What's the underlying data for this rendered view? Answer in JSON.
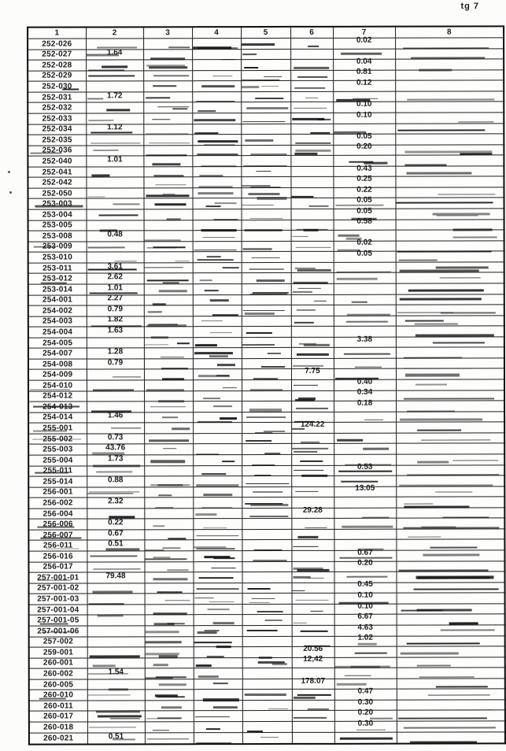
{
  "page_label": "tg 7",
  "table": {
    "headers": [
      "1",
      "2",
      "3",
      "4",
      "5",
      "6",
      "7",
      "8"
    ],
    "rows": [
      {
        "label": "252-026",
        "c2": "",
        "c6": "",
        "c7": "0.02"
      },
      {
        "label": "252-027",
        "c2": "1.64",
        "c6": "",
        "c7": ""
      },
      {
        "label": "252-028",
        "c2": "",
        "c6": "",
        "c7": "0.04"
      },
      {
        "label": "252-029",
        "c2": "",
        "c6": "",
        "c7": "0.81"
      },
      {
        "label": "252-030",
        "c2": "",
        "c6": "",
        "c7": "0.12"
      },
      {
        "label": "252-031",
        "c2": "1.72",
        "c6": "",
        "c7": ""
      },
      {
        "label": "252-032",
        "c2": "",
        "c6": "",
        "c7": "0.10"
      },
      {
        "label": "252-033",
        "c2": "",
        "c6": "",
        "c7": "0.10"
      },
      {
        "label": "252-034",
        "c2": "1.12",
        "c6": "",
        "c7": ""
      },
      {
        "label": "252-035",
        "c2": "",
        "c6": "",
        "c7": "0.05"
      },
      {
        "label": "252-036",
        "c2": "",
        "c6": "",
        "c7": "0.20"
      },
      {
        "label": "252-040",
        "c2": "1.01",
        "c6": "",
        "c7": ""
      },
      {
        "label": "252-041",
        "c2": "",
        "c6": "",
        "c7": "0.43"
      },
      {
        "label": "252-042",
        "c2": "",
        "c6": "",
        "c7": "0.25"
      },
      {
        "label": "252-050",
        "c2": "",
        "c6": "",
        "c7": "0.22"
      },
      {
        "label": "253-003",
        "c2": "",
        "c6": "",
        "c7": "0.05"
      },
      {
        "label": "253-004",
        "c2": "",
        "c6": "",
        "c7": "0.05"
      },
      {
        "label": "253-005",
        "c2": "",
        "c6": "",
        "c7": "0.58"
      },
      {
        "label": "253-008",
        "c2": "0.48",
        "c6": "",
        "c7": ""
      },
      {
        "label": "253-009",
        "c2": "",
        "c6": "",
        "c7": "0.02"
      },
      {
        "label": "253-010",
        "c2": "",
        "c6": "",
        "c7": "0.05"
      },
      {
        "label": "253-011",
        "c2": "3.61",
        "c6": "",
        "c7": ""
      },
      {
        "label": "253-012",
        "c2": "2.62",
        "c6": "",
        "c7": ""
      },
      {
        "label": "253-014",
        "c2": "1.01",
        "c6": "",
        "c7": ""
      },
      {
        "label": "254-001",
        "c2": "2.27",
        "c6": "",
        "c7": ""
      },
      {
        "label": "254-002",
        "c2": "0.79",
        "c6": "",
        "c7": ""
      },
      {
        "label": "254-003",
        "c2": "1.82",
        "c6": "",
        "c7": ""
      },
      {
        "label": "254-004",
        "c2": "1.63",
        "c6": "",
        "c7": ""
      },
      {
        "label": "254-005",
        "c2": "",
        "c6": "",
        "c7": "3.38"
      },
      {
        "label": "254-007",
        "c2": "1.28",
        "c6": "",
        "c7": ""
      },
      {
        "label": "254-008",
        "c2": "0.79",
        "c6": "",
        "c7": ""
      },
      {
        "label": "254-009",
        "c2": "",
        "c6": "7.75",
        "c7": ""
      },
      {
        "label": "254-010",
        "c2": "",
        "c6": "",
        "c7": "0.40"
      },
      {
        "label": "254-012",
        "c2": "",
        "c6": "",
        "c7": "0.34"
      },
      {
        "label": "254-013",
        "c2": "",
        "c6": "",
        "c7": "0.18"
      },
      {
        "label": "254-014",
        "c2": "1.46",
        "c6": "",
        "c7": ""
      },
      {
        "label": "255-001",
        "c2": "",
        "c6": "124.22",
        "c7": ""
      },
      {
        "label": "255-002",
        "c2": "0.73",
        "c6": "",
        "c7": ""
      },
      {
        "label": "255-003",
        "c2": "43.76",
        "c6": "",
        "c7": ""
      },
      {
        "label": "255-004",
        "c2": "1.73",
        "c6": "",
        "c7": ""
      },
      {
        "label": "255-011",
        "c2": "",
        "c6": "",
        "c7": "0.53"
      },
      {
        "label": "255-014",
        "c2": "0.88",
        "c6": "",
        "c7": ""
      },
      {
        "label": "256-001",
        "c2": "",
        "c6": "",
        "c7": "13.05"
      },
      {
        "label": "256-002",
        "c2": "2.32",
        "c6": "",
        "c7": ""
      },
      {
        "label": "256-004",
        "c2": "",
        "c6": "29.28",
        "c7": ""
      },
      {
        "label": "256-006",
        "c2": "0.22",
        "c6": "",
        "c7": ""
      },
      {
        "label": "256-007",
        "c2": "0.67",
        "c6": "",
        "c7": ""
      },
      {
        "label": "256-011",
        "c2": "0.51",
        "c6": "",
        "c7": ""
      },
      {
        "label": "256-016",
        "c2": "",
        "c6": "",
        "c7": "0.67"
      },
      {
        "label": "256-017",
        "c2": "",
        "c6": "",
        "c7": "0.20"
      },
      {
        "label": "257-001-01",
        "c2": "79.48",
        "c6": "",
        "c7": ""
      },
      {
        "label": "257-001-02",
        "c2": "",
        "c6": "",
        "c7": "0.45"
      },
      {
        "label": "257-001-03",
        "c2": "",
        "c6": "",
        "c7": "0.10"
      },
      {
        "label": "257-001-04",
        "c2": "",
        "c6": "",
        "c7": "0.10"
      },
      {
        "label": "257-001-05",
        "c2": "",
        "c6": "",
        "c7": "6.67"
      },
      {
        "label": "257-001-06",
        "c2": "",
        "c6": "",
        "c7": "4.63"
      },
      {
        "label": "257-002",
        "c2": "",
        "c6": "",
        "c7": "1.02"
      },
      {
        "label": "259-001",
        "c2": "",
        "c6": "20.56",
        "c7": ""
      },
      {
        "label": "260-001",
        "c2": "",
        "c6": "12,42",
        "c7": ""
      },
      {
        "label": "260-002",
        "c2": "1.54",
        "c6": "",
        "c7": ""
      },
      {
        "label": "260-005",
        "c2": "",
        "c6": "178.07",
        "c7": ""
      },
      {
        "label": "260-010",
        "c2": "",
        "c6": "",
        "c7": "0.47"
      },
      {
        "label": "260-011",
        "c2": "",
        "c6": "",
        "c7": "0.30"
      },
      {
        "label": "260-017",
        "c2": "",
        "c6": "",
        "c7": "0.20"
      },
      {
        "label": "260-018",
        "c2": "",
        "c6": "",
        "c7": "0.30"
      },
      {
        "label": "260-021",
        "c2": "0.51",
        "c6": "",
        "c7": ""
      }
    ]
  }
}
